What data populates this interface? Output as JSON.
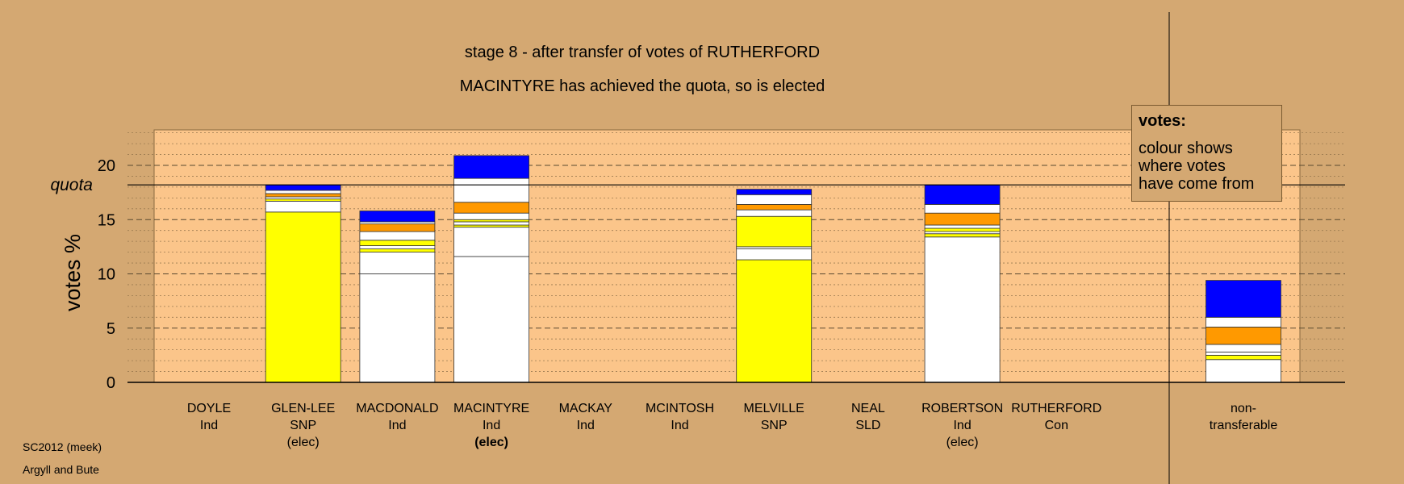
{
  "titles": {
    "line1": "stage 8 - after transfer of votes of RUTHERFORD",
    "line2": "MACINTYRE has achieved the quota, so is elected"
  },
  "legend": {
    "heading": "votes:",
    "lines": [
      "colour shows",
      "where votes",
      "have come from"
    ]
  },
  "footer": {
    "line1": "SC2012 (meek)",
    "line2": "Argyll and Bute"
  },
  "chart_data": {
    "type": "bar",
    "stacked": true,
    "ylabel": "votes %",
    "ylim": [
      0,
      23.3
    ],
    "yticks": [
      0,
      5,
      10,
      15,
      20
    ],
    "quota": 18.2,
    "quota_label": "quota",
    "grid": "dashed horizontal lines",
    "colors": {
      "background": "#d4a872",
      "plot_area": "#fbc58a",
      "snp": "#ffff00",
      "ind": "#ffffff",
      "con": "#0000ff",
      "sld": "#ff9900"
    },
    "candidates": [
      {
        "name": "DOYLE",
        "party": "Ind",
        "status": "",
        "elected_now": false,
        "segments": []
      },
      {
        "name": "GLEN-LEE",
        "party": "SNP",
        "status": "(elec)",
        "elected_now": false,
        "segments": [
          {
            "value": 15.7,
            "color": "#ffff00"
          },
          {
            "value": 1.0,
            "color": "#ffffff"
          },
          {
            "value": 0.2,
            "color": "#ffff00"
          },
          {
            "value": 0.2,
            "color": "#ffffff"
          },
          {
            "value": 0.3,
            "color": "#ff9900"
          },
          {
            "value": 0.3,
            "color": "#ffffff"
          },
          {
            "value": 0.5,
            "color": "#0000ff"
          }
        ]
      },
      {
        "name": "MACDONALD",
        "party": "Ind",
        "status": "",
        "elected_now": false,
        "segments": [
          {
            "value": 10.0,
            "color": "#ffffff"
          },
          {
            "value": 2.0,
            "color": "#ffffff"
          },
          {
            "value": 0.3,
            "color": "#ffff00"
          },
          {
            "value": 0.3,
            "color": "#ffffff"
          },
          {
            "value": 0.5,
            "color": "#ffff00"
          },
          {
            "value": 0.8,
            "color": "#ffffff"
          },
          {
            "value": 0.7,
            "color": "#ff9900"
          },
          {
            "value": 0.2,
            "color": "#ffffff"
          },
          {
            "value": 1.0,
            "color": "#0000ff"
          }
        ]
      },
      {
        "name": "MACINTYRE",
        "party": "Ind",
        "status": "(elec)",
        "elected_now": true,
        "segments": [
          {
            "value": 11.6,
            "color": "#ffffff"
          },
          {
            "value": 2.7,
            "color": "#ffffff"
          },
          {
            "value": 0.2,
            "color": "#ffff00"
          },
          {
            "value": 0.3,
            "color": "#ffffff"
          },
          {
            "value": 0.2,
            "color": "#ffff00"
          },
          {
            "value": 0.6,
            "color": "#ffffff"
          },
          {
            "value": 1.0,
            "color": "#ff9900"
          },
          {
            "value": 2.2,
            "color": "#ffffff"
          },
          {
            "value": 2.1,
            "color": "#0000ff"
          }
        ]
      },
      {
        "name": "MACKAY",
        "party": "Ind",
        "status": "",
        "elected_now": false,
        "segments": []
      },
      {
        "name": "MCINTOSH",
        "party": "Ind",
        "status": "",
        "elected_now": false,
        "segments": []
      },
      {
        "name": "MELVILLE",
        "party": "SNP",
        "status": "",
        "elected_now": false,
        "segments": [
          {
            "value": 11.3,
            "color": "#ffff00"
          },
          {
            "value": 1.0,
            "color": "#ffffff"
          },
          {
            "value": 0.2,
            "color": "#ffffff"
          },
          {
            "value": 2.8,
            "color": "#ffff00"
          },
          {
            "value": 0.6,
            "color": "#ffffff"
          },
          {
            "value": 0.5,
            "color": "#ff9900"
          },
          {
            "value": 0.9,
            "color": "#ffffff"
          },
          {
            "value": 0.5,
            "color": "#0000ff"
          }
        ]
      },
      {
        "name": "NEAL",
        "party": "SLD",
        "status": "",
        "elected_now": false,
        "segments": []
      },
      {
        "name": "ROBERTSON",
        "party": "Ind",
        "status": "(elec)",
        "elected_now": false,
        "segments": [
          {
            "value": 13.4,
            "color": "#ffffff"
          },
          {
            "value": 0.3,
            "color": "#ffff00"
          },
          {
            "value": 0.2,
            "color": "#ffffff"
          },
          {
            "value": 0.3,
            "color": "#ffff00"
          },
          {
            "value": 0.3,
            "color": "#ffffff"
          },
          {
            "value": 1.1,
            "color": "#ff9900"
          },
          {
            "value": 0.8,
            "color": "#ffffff"
          },
          {
            "value": 1.8,
            "color": "#0000ff"
          }
        ]
      },
      {
        "name": "RUTHERFORD",
        "party": "Con",
        "status": "",
        "elected_now": false,
        "segments": []
      }
    ],
    "nontransferable": {
      "label": [
        "non-",
        "transferable"
      ],
      "segments": [
        {
          "value": 2.1,
          "color": "#ffffff"
        },
        {
          "value": 0.4,
          "color": "#ffff00"
        },
        {
          "value": 0.3,
          "color": "#ffffff"
        },
        {
          "value": 0.7,
          "color": "#ffffff"
        },
        {
          "value": 1.6,
          "color": "#ff9900"
        },
        {
          "value": 0.9,
          "color": "#ffffff"
        },
        {
          "value": 3.4,
          "color": "#0000ff"
        }
      ]
    }
  }
}
